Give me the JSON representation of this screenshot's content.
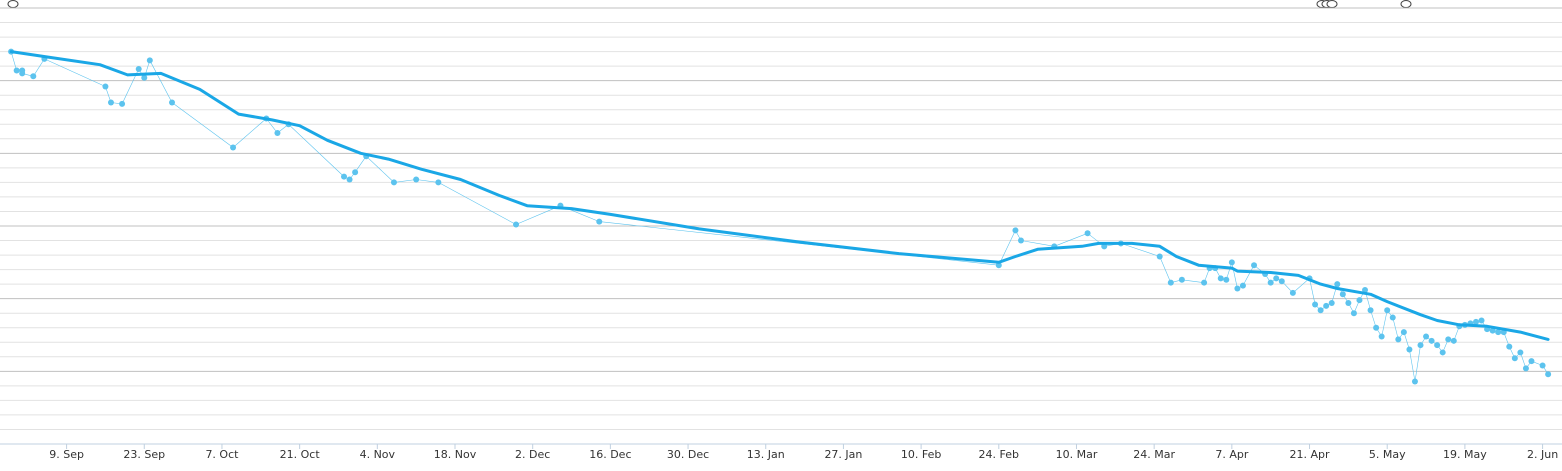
{
  "chart_data": {
    "type": "line",
    "xlim": [
      -12,
      269.5
    ],
    "ylim": [
      0,
      30
    ],
    "xticks": [
      {
        "value": 0,
        "label": "9. Sep"
      },
      {
        "value": 14,
        "label": "23. Sep"
      },
      {
        "value": 28,
        "label": "7. Oct"
      },
      {
        "value": 42,
        "label": "21. Oct"
      },
      {
        "value": 56,
        "label": "4. Nov"
      },
      {
        "value": 70,
        "label": "18. Nov"
      },
      {
        "value": 84,
        "label": "2. Dec"
      },
      {
        "value": 98,
        "label": "16. Dec"
      },
      {
        "value": 112,
        "label": "30. Dec"
      },
      {
        "value": 126,
        "label": "13. Jan"
      },
      {
        "value": 140,
        "label": "27. Jan"
      },
      {
        "value": 154,
        "label": "10. Feb"
      },
      {
        "value": 168,
        "label": "24. Feb"
      },
      {
        "value": 182,
        "label": "10. Mar"
      },
      {
        "value": 196,
        "label": "24. Mar"
      },
      {
        "value": 210,
        "label": "7. Apr"
      },
      {
        "value": 224,
        "label": "21. Apr"
      },
      {
        "value": 238,
        "label": "5. May"
      },
      {
        "value": 252,
        "label": "19. May"
      },
      {
        "value": 266,
        "label": "2. Jun"
      }
    ],
    "yticks": [
      0,
      1,
      2,
      3,
      4,
      5,
      6,
      7,
      8,
      9,
      10,
      11,
      12,
      13,
      14,
      15,
      16,
      17,
      18,
      19,
      20,
      21,
      22,
      23,
      24,
      25,
      26,
      27,
      28,
      29,
      30
    ],
    "grid": true,
    "series": [
      {
        "color": "#5cc3ee",
        "line_width": 0.6,
        "markers": true,
        "x": [
          -10,
          -9,
          -8,
          -8,
          -6,
          -4,
          7,
          8,
          10,
          13,
          14,
          15,
          19,
          30,
          36,
          38,
          40,
          50,
          51,
          52,
          54,
          59,
          63,
          67,
          81,
          89,
          96,
          168,
          171,
          172,
          178,
          184,
          187,
          190,
          197,
          199,
          201,
          205,
          206,
          207,
          208,
          209,
          210,
          211,
          212,
          214,
          216,
          217,
          218,
          219,
          221,
          224,
          225,
          226,
          227,
          228,
          229,
          230,
          231,
          232,
          233,
          234,
          235,
          236,
          237,
          238,
          239,
          240,
          241,
          242,
          243,
          244,
          245,
          246,
          247,
          248,
          249,
          250,
          251,
          252,
          253,
          254,
          255,
          256,
          257,
          258,
          259,
          260,
          261,
          262,
          263,
          264,
          266,
          267
        ],
        "values": [
          27.0,
          25.7,
          25.7,
          25.5,
          25.3,
          26.5,
          24.6,
          23.5,
          23.4,
          25.8,
          25.2,
          26.4,
          23.5,
          20.4,
          22.4,
          21.4,
          22.0,
          18.4,
          18.2,
          18.7,
          19.8,
          18.0,
          18.2,
          18.0,
          15.1,
          16.4,
          15.3,
          12.3,
          14.7,
          14.0,
          13.6,
          14.5,
          13.6,
          13.8,
          12.9,
          11.1,
          11.3,
          11.1,
          12.1,
          12.1,
          11.4,
          11.3,
          12.5,
          10.7,
          10.9,
          12.3,
          11.7,
          11.1,
          11.4,
          11.2,
          10.4,
          11.4,
          9.6,
          9.2,
          9.5,
          9.7,
          11.0,
          10.3,
          9.7,
          9.0,
          9.9,
          10.6,
          9.2,
          8.0,
          7.4,
          9.2,
          8.7,
          7.2,
          7.7,
          6.5,
          4.3,
          6.8,
          7.4,
          7.1,
          6.8,
          6.3,
          7.2,
          7.1,
          8.1,
          8.2,
          8.3,
          8.4,
          8.5,
          7.9,
          7.8,
          7.7,
          7.7,
          6.7,
          5.9,
          6.3,
          5.2,
          5.7,
          5.4,
          4.8
        ]
      },
      {
        "color": "#1aa7e6",
        "line_width": 3,
        "markers": false,
        "x": [
          -10,
          -3,
          6,
          11,
          17,
          24,
          31,
          37,
          42,
          47,
          53,
          58,
          64,
          71,
          78,
          83,
          91,
          98,
          114,
          132,
          150,
          168,
          171,
          175,
          183,
          186,
          192,
          197,
          200,
          204,
          210,
          211,
          217,
          222,
          226,
          229,
          235,
          238,
          244,
          247,
          251,
          256,
          262,
          267
        ],
        "values": [
          27.0,
          26.6,
          26.1,
          25.4,
          25.5,
          24.4,
          22.7,
          22.3,
          21.9,
          20.9,
          20.0,
          19.6,
          18.9,
          18.2,
          17.1,
          16.4,
          16.2,
          15.8,
          14.8,
          13.9,
          13.1,
          12.5,
          12.9,
          13.4,
          13.6,
          13.8,
          13.8,
          13.6,
          12.9,
          12.3,
          12.1,
          11.9,
          11.8,
          11.6,
          11.0,
          10.7,
          10.3,
          9.8,
          8.9,
          8.5,
          8.2,
          8.1,
          7.7,
          7.2
        ]
      }
    ]
  }
}
